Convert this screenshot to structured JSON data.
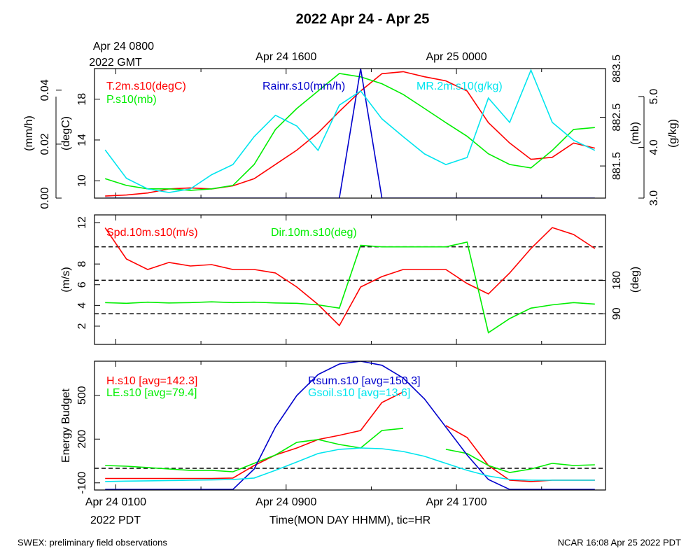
{
  "title": "2022 Apr 24 - Apr 25",
  "time_axis": {
    "x": [
      0.5,
      1.5,
      2.5,
      3.5,
      4.5,
      5.5,
      6.5,
      7.5,
      8.5,
      9.5,
      10.5,
      11.5,
      12.5,
      13.5,
      14.5,
      15.5,
      16.5,
      17.5,
      18.5,
      19.5,
      20.5,
      21.5,
      22.5,
      23.5
    ],
    "xlim": [
      0,
      24
    ],
    "xticks": [
      {
        "value": 1,
        "label": "Apr 24 0100"
      },
      {
        "value": 9,
        "label": "Apr 24 0900"
      },
      {
        "value": 17,
        "label": "Apr 24 1700"
      }
    ],
    "minor_xticks": [
      5,
      13,
      21
    ],
    "top_xticks": [
      {
        "value": 1,
        "label": "Apr 24 0800"
      },
      {
        "value": 9,
        "label": "Apr 24 1600"
      },
      {
        "value": 17,
        "label": "Apr 25 0000"
      }
    ],
    "bottom_zone": "2022 PDT",
    "top_zone": "2022 GMT",
    "xlabel": "Time(MON DAY HHMM), tic=HR"
  },
  "chart_data": [
    {
      "type": "line",
      "axes": [
        {
          "label": "(mm/h)",
          "ylim": [
            0,
            0.048
          ],
          "yticks": [
            {
              "value": 0,
              "label": "0.00"
            },
            {
              "value": 0.02,
              "label": "0.02"
            },
            {
              "value": 0.04,
              "label": "0.04"
            }
          ]
        },
        {
          "label": "(degC)",
          "ylim": [
            8.3,
            21
          ],
          "yticks": [
            10,
            14,
            18
          ]
        },
        {
          "label": "(mb)",
          "ylim": [
            880.84,
            883.5
          ],
          "yticks": [
            881.5,
            882.5,
            883.5
          ]
        },
        {
          "label": "(g/kg)",
          "ylim": [
            3,
            5.55
          ],
          "yticks": [
            {
              "value": 3,
              "label": "3.0"
            },
            {
              "value": 4,
              "label": "4.0"
            },
            {
              "value": 5,
              "label": "5.0"
            }
          ]
        }
      ],
      "series": [
        {
          "name": "T.2m.s10(degC)",
          "color": "#ff0000",
          "axis": 1,
          "values": [
            8.5,
            8.6,
            8.8,
            9.2,
            9.3,
            9.2,
            9.5,
            10.2,
            11.6,
            13.0,
            14.7,
            16.8,
            18.8,
            20.5,
            20.7,
            20.2,
            19.8,
            18.8,
            15.7,
            13.7,
            12.1,
            12.3,
            13.7,
            13.2
          ]
        },
        {
          "name": "P.s10(mb)",
          "color": "#00ee00",
          "axis": 2,
          "values": [
            881.24,
            881.1,
            881.03,
            881.03,
            881.0,
            881.03,
            881.1,
            881.53,
            882.25,
            882.68,
            883.04,
            883.4,
            883.33,
            883.19,
            882.97,
            882.68,
            882.39,
            882.11,
            881.75,
            881.53,
            881.46,
            881.82,
            882.25,
            882.29
          ]
        },
        {
          "name": "Rainr.s10(mm/h)",
          "color": "#0000cc",
          "axis": 0,
          "values": [
            0,
            0,
            0,
            0,
            0,
            0,
            0,
            0,
            0,
            0,
            0,
            0,
            0.048,
            0,
            0,
            0,
            0,
            0,
            0,
            0,
            0,
            0,
            0,
            0
          ]
        },
        {
          "name": "MR.2m.s10(g/kg)",
          "color": "#00e5ee",
          "axis": 3,
          "values": [
            3.95,
            3.39,
            3.18,
            3.11,
            3.18,
            3.46,
            3.66,
            4.21,
            4.63,
            4.42,
            3.94,
            4.83,
            5.11,
            4.56,
            4.21,
            3.87,
            3.66,
            3.8,
            4.97,
            4.49,
            5.52,
            4.49,
            4.14,
            3.94
          ]
        }
      ]
    },
    {
      "type": "line",
      "axes": [
        {
          "label": "(m/s)",
          "ylim": [
            0.24,
            12.74
          ],
          "yticks": [
            2,
            4,
            6,
            8,
            12
          ]
        },
        {
          "label": "(deg)",
          "ylim": [
            7.5,
            356
          ],
          "yticks": [
            90,
            180
          ],
          "ref_lines": [
            90,
            180,
            270
          ]
        }
      ],
      "series": [
        {
          "name": "Spd.10m.s10(m/s)",
          "color": "#ff0000",
          "axis": 0,
          "values": [
            11.5,
            8.48,
            7.47,
            8.15,
            7.81,
            7.94,
            7.47,
            7.47,
            7.13,
            5.78,
            4.09,
            2.06,
            5.78,
            6.79,
            7.47,
            7.47,
            7.47,
            6.12,
            5.11,
            7.13,
            9.5,
            11.52,
            10.85,
            9.5
          ]
        },
        {
          "name": "Dir.10m.s10(deg)",
          "color": "#00ee00",
          "axis": 1,
          "values": [
            120,
            118,
            121,
            119,
            120,
            122,
            120,
            121,
            119,
            118,
            114,
            105,
            274,
            270,
            270,
            270,
            270,
            283,
            39,
            77,
            105,
            114,
            120,
            116
          ]
        }
      ]
    },
    {
      "type": "line",
      "axes": [
        {
          "label": "Energy Budget",
          "ylim": [
            -149,
            734
          ],
          "yticks": [
            {
              "value": -100,
              "label": "-100"
            },
            200,
            500
          ],
          "ref_lines": [
            0
          ]
        }
      ],
      "series": [
        {
          "name": "H.s10 [avg=142.3]",
          "color": "#ff0000",
          "axis": 0,
          "values": [
            -70,
            -70,
            -70,
            -70,
            -70,
            -70,
            -67,
            19,
            91,
            139,
            197,
            226,
            259,
            451,
            523,
            null,
            293,
            211,
            19,
            -82,
            -91,
            -82,
            -82,
            -82
          ]
        },
        {
          "name": "LE.s10 [avg=79.4]",
          "color": "#00ee00",
          "axis": 0,
          "values": [
            19,
            14,
            5,
            -5,
            -14,
            -14,
            -24,
            34,
            91,
            178,
            197,
            163,
            139,
            259,
            274,
            null,
            130,
            101,
            19,
            -29,
            -5,
            34,
            19,
            24
          ]
        },
        {
          "name": "Rsum.s10 [avg=150.3]",
          "color": "#0000cc",
          "axis": 0,
          "values": [
            -145,
            -145,
            -145,
            -145,
            -145,
            -145,
            -145,
            -5,
            283,
            499,
            643,
            715,
            734,
            706,
            619,
            475,
            283,
            91,
            -77,
            -145,
            -145,
            -145,
            -145,
            -145
          ]
        },
        {
          "name": "Gsoil.s10 [avg=13.6]",
          "color": "#00e5ee",
          "axis": 0,
          "values": [
            -91,
            -88,
            -86,
            -84,
            -82,
            -80,
            -77,
            -67,
            -14,
            43,
            101,
            130,
            139,
            134,
            115,
            82,
            34,
            -14,
            -53,
            -77,
            -82,
            -82,
            -82,
            -82
          ]
        }
      ]
    }
  ],
  "footer": {
    "left": "SWEX: preliminary field observations",
    "right": "NCAR 16:08 Apr 25 2022 PDT"
  }
}
